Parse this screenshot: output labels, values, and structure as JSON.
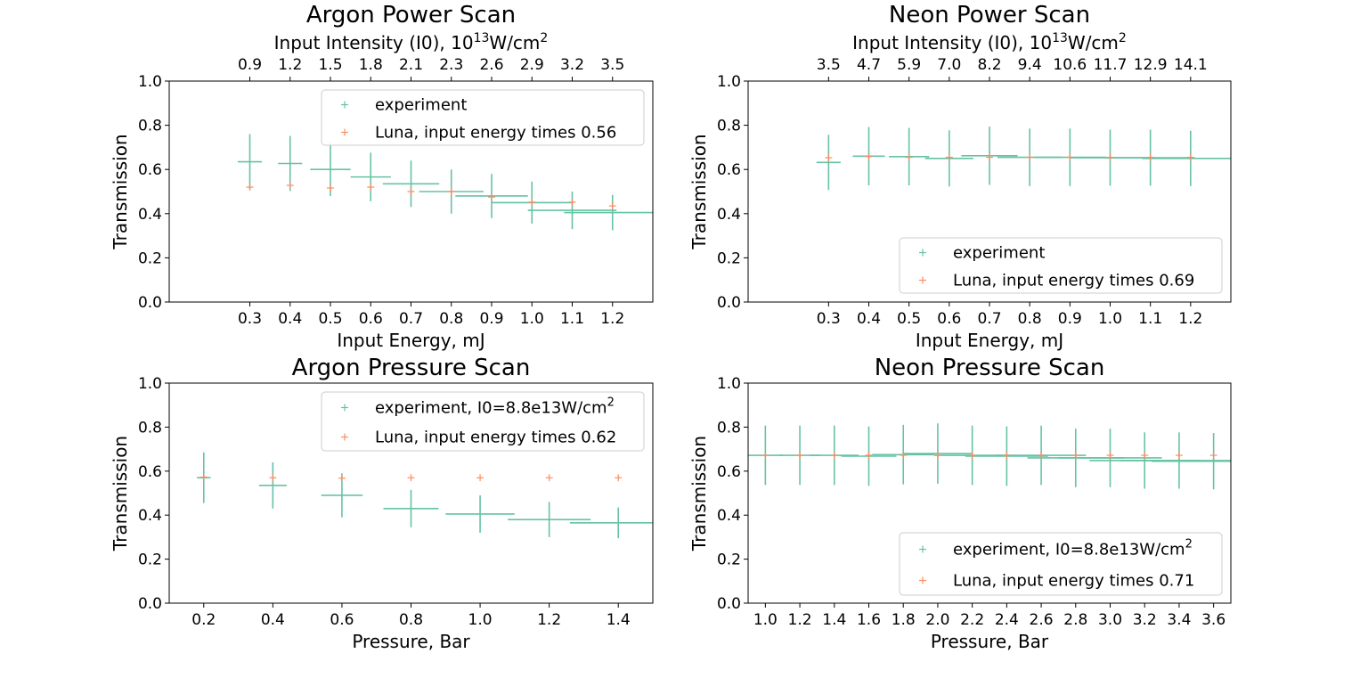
{
  "colors": {
    "experiment": "#66c2a5",
    "luna": "#fc8d62"
  },
  "chart_data": [
    {
      "type": "scatter",
      "title": "Argon Power Scan",
      "xlabel": "Input Energy, mJ",
      "ylabel": "Transmission",
      "top_xlabel": "Input Intensity (I0), 10",
      "top_xlabel_sup": "13",
      "top_xlabel_unit": "W/cm",
      "top_xlabel_unit_sup": "2",
      "xlim": [
        0.1,
        1.3
      ],
      "ylim": [
        0.0,
        1.0
      ],
      "xticks": [
        "0.3",
        "0.4",
        "0.5",
        "0.6",
        "0.7",
        "0.8",
        "0.9",
        "1.0",
        "1.1",
        "1.2"
      ],
      "yticks": [
        "0.0",
        "0.2",
        "0.4",
        "0.6",
        "0.8",
        "1.0"
      ],
      "top_xticks": [
        "0.9",
        "1.2",
        "1.5",
        "1.8",
        "2.1",
        "2.3",
        "2.6",
        "2.9",
        "3.2",
        "3.5"
      ],
      "legend_placement": "top-right",
      "series": [
        {
          "name": "experiment",
          "kind": "errorbar",
          "x": [
            0.3,
            0.4,
            0.5,
            0.6,
            0.7,
            0.8,
            0.9,
            1.0,
            1.1,
            1.2
          ],
          "y": [
            0.635,
            0.627,
            0.6,
            0.566,
            0.535,
            0.5,
            0.48,
            0.45,
            0.415,
            0.405
          ],
          "xerr_minus": [
            0.03,
            0.03,
            0.05,
            0.05,
            0.07,
            0.08,
            0.09,
            0.1,
            0.11,
            0.12
          ],
          "xerr_plus": [
            0.03,
            0.03,
            0.05,
            0.05,
            0.07,
            0.08,
            0.09,
            0.1,
            0.11,
            0.11
          ],
          "yerr": [
            0.125,
            0.125,
            0.12,
            0.11,
            0.105,
            0.1,
            0.1,
            0.095,
            0.085,
            0.08
          ]
        },
        {
          "name": "Luna, input energy times 0.56",
          "kind": "marker",
          "x": [
            0.3,
            0.4,
            0.5,
            0.6,
            0.7,
            0.8,
            0.9,
            1.0,
            1.1,
            1.2
          ],
          "y": [
            0.52,
            0.528,
            0.516,
            0.52,
            0.5,
            0.5,
            0.475,
            0.452,
            0.452,
            0.435
          ]
        }
      ]
    },
    {
      "type": "scatter",
      "title": "Neon Power Scan",
      "xlabel": "Input Energy, mJ",
      "ylabel": "Transmission",
      "top_xlabel": "Input Intensity (I0), 10",
      "top_xlabel_sup": "13",
      "top_xlabel_unit": "W/cm",
      "top_xlabel_unit_sup": "2",
      "xlim": [
        0.1,
        1.3
      ],
      "ylim": [
        0.0,
        1.0
      ],
      "xticks": [
        "0.3",
        "0.4",
        "0.5",
        "0.6",
        "0.7",
        "0.8",
        "0.9",
        "1.0",
        "1.1",
        "1.2"
      ],
      "yticks": [
        "0.0",
        "0.2",
        "0.4",
        "0.6",
        "0.8",
        "1.0"
      ],
      "top_xticks": [
        "3.5",
        "4.7",
        "5.9",
        "7.0",
        "8.2",
        "9.4",
        "10.6",
        "11.7",
        "12.9",
        "14.1"
      ],
      "legend_placement": "lower-right",
      "series": [
        {
          "name": "experiment",
          "kind": "errorbar",
          "x": [
            0.3,
            0.4,
            0.5,
            0.6,
            0.7,
            0.8,
            0.9,
            1.0,
            1.1,
            1.2
          ],
          "y": [
            0.632,
            0.66,
            0.658,
            0.65,
            0.662,
            0.655,
            0.655,
            0.653,
            0.653,
            0.65
          ],
          "xerr_minus": [
            0.03,
            0.04,
            0.05,
            0.06,
            0.07,
            0.08,
            0.09,
            0.1,
            0.11,
            0.12
          ],
          "xerr_plus": [
            0.03,
            0.04,
            0.05,
            0.06,
            0.07,
            0.08,
            0.09,
            0.1,
            0.11,
            0.11
          ],
          "yerr": [
            0.125,
            0.132,
            0.13,
            0.127,
            0.132,
            0.13,
            0.13,
            0.127,
            0.127,
            0.125
          ]
        },
        {
          "name": "Luna, input energy times 0.69",
          "kind": "marker",
          "x": [
            0.3,
            0.4,
            0.5,
            0.6,
            0.7,
            0.8,
            0.9,
            1.0,
            1.1,
            1.2
          ],
          "y": [
            0.653,
            0.658,
            0.655,
            0.655,
            0.655,
            0.655,
            0.655,
            0.655,
            0.655,
            0.655
          ]
        }
      ]
    },
    {
      "type": "scatter",
      "title": "Argon Pressure Scan",
      "xlabel": "Pressure, Bar",
      "ylabel": "Transmission",
      "xlim": [
        0.1,
        1.5
      ],
      "ylim": [
        0.0,
        1.0
      ],
      "xticks": [
        "0.2",
        "0.4",
        "0.6",
        "0.8",
        "1.0",
        "1.2",
        "1.4"
      ],
      "yticks": [
        "0.0",
        "0.2",
        "0.4",
        "0.6",
        "0.8",
        "1.0"
      ],
      "legend_placement": "top-right",
      "series": [
        {
          "name": "experiment, I0=8.8e13W/cm",
          "name_sup": "2",
          "kind": "errorbar",
          "x": [
            0.2,
            0.4,
            0.6,
            0.8,
            1.0,
            1.2,
            1.4
          ],
          "y": [
            0.57,
            0.535,
            0.49,
            0.43,
            0.405,
            0.38,
            0.365
          ],
          "xerr_minus": [
            0.02,
            0.04,
            0.06,
            0.08,
            0.1,
            0.12,
            0.14
          ],
          "xerr_plus": [
            0.02,
            0.04,
            0.06,
            0.08,
            0.1,
            0.12,
            0.14
          ],
          "yerr": [
            0.115,
            0.105,
            0.1,
            0.085,
            0.085,
            0.08,
            0.07
          ]
        },
        {
          "name": "Luna, input energy times 0.62",
          "kind": "marker",
          "x": [
            0.2,
            0.4,
            0.6,
            0.8,
            1.0,
            1.2,
            1.4
          ],
          "y": [
            0.573,
            0.57,
            0.568,
            0.57,
            0.57,
            0.57,
            0.57
          ]
        }
      ]
    },
    {
      "type": "scatter",
      "title": "Neon Pressure Scan",
      "xlabel": "Pressure, Bar",
      "ylabel": "Transmission",
      "xlim": [
        0.9,
        3.7
      ],
      "ylim": [
        0.0,
        1.0
      ],
      "xticks": [
        "1.0",
        "1.2",
        "1.4",
        "1.6",
        "1.8",
        "2.0",
        "2.2",
        "2.4",
        "2.6",
        "2.8",
        "3.0",
        "3.2",
        "3.4",
        "3.6"
      ],
      "yticks": [
        "0.0",
        "0.2",
        "0.4",
        "0.6",
        "0.8",
        "1.0"
      ],
      "legend_placement": "lower-right",
      "series": [
        {
          "name": "experiment, I0=8.8e13W/cm",
          "name_sup": "2",
          "kind": "errorbar",
          "x": [
            1.0,
            1.2,
            1.4,
            1.6,
            1.8,
            2.0,
            2.2,
            2.4,
            2.6,
            2.8,
            3.0,
            3.2,
            3.4,
            3.6
          ],
          "y": [
            0.672,
            0.672,
            0.672,
            0.668,
            0.675,
            0.68,
            0.672,
            0.668,
            0.672,
            0.66,
            0.66,
            0.648,
            0.648,
            0.645
          ],
          "xerr_minus": [
            0.1,
            0.12,
            0.14,
            0.16,
            0.18,
            0.2,
            0.22,
            0.24,
            0.26,
            0.28,
            0.3,
            0.32,
            0.34,
            0.36
          ],
          "xerr_plus": [
            0.1,
            0.12,
            0.14,
            0.16,
            0.18,
            0.2,
            0.22,
            0.24,
            0.26,
            0.28,
            0.3,
            0.32,
            0.3,
            0.1
          ],
          "yerr": [
            0.135,
            0.135,
            0.135,
            0.135,
            0.135,
            0.137,
            0.135,
            0.135,
            0.135,
            0.133,
            0.133,
            0.128,
            0.128,
            0.128
          ]
        },
        {
          "name": "Luna, input energy times 0.71",
          "kind": "marker",
          "x": [
            1.0,
            1.2,
            1.4,
            1.6,
            1.8,
            2.0,
            2.2,
            2.4,
            2.6,
            2.8,
            3.0,
            3.2,
            3.4,
            3.6
          ],
          "y": [
            0.672,
            0.672,
            0.672,
            0.672,
            0.672,
            0.672,
            0.672,
            0.672,
            0.672,
            0.672,
            0.672,
            0.672,
            0.672,
            0.672
          ]
        }
      ]
    }
  ]
}
